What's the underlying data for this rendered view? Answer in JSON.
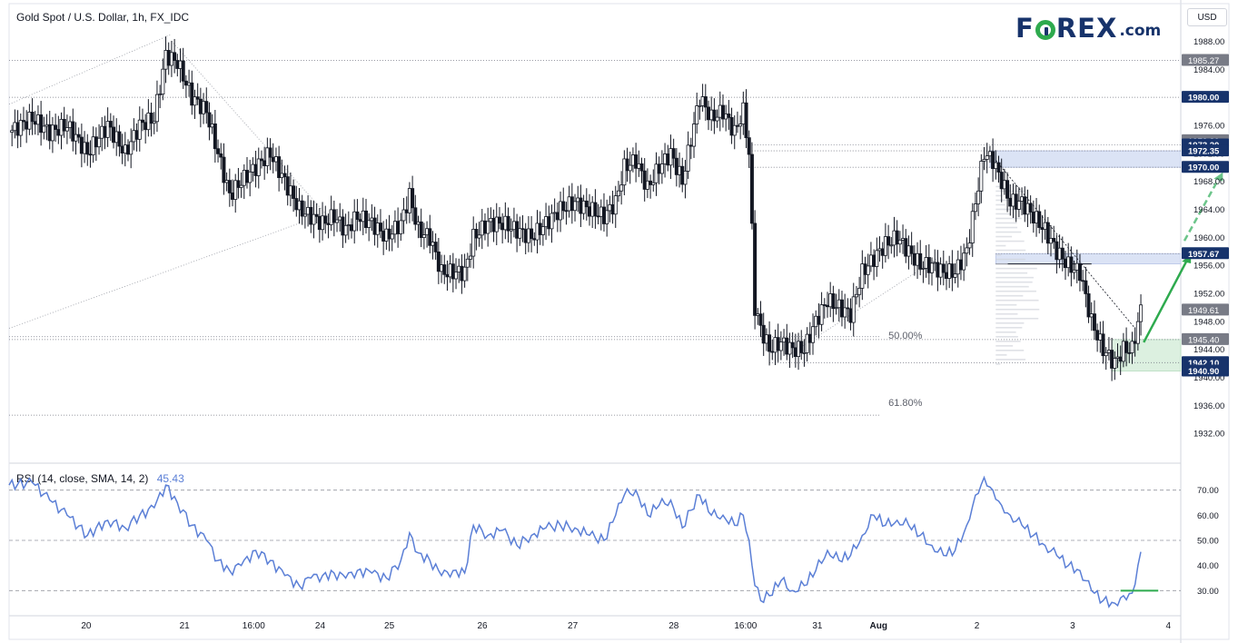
{
  "header": {
    "title": "Gold Spot / U.S. Dollar, 1h, FX_IDC",
    "currency_button": "USD"
  },
  "brand": {
    "name_left": "F",
    "name_right": "REX",
    "suffix": ".com"
  },
  "colors": {
    "up_candle": "#ffffff",
    "down_candle": "#131722",
    "rsi_line": "#5b7fd6",
    "green_arrow": "#2eaa4e",
    "zone_blue": "#dbe3f5",
    "zone_green": "#dcf0e0",
    "label_navy": "#17336b",
    "label_grey": "#787b86"
  },
  "chart_data": [
    {
      "type": "candlestick",
      "title": "Gold Spot / U.S. Dollar, 1h, FX_IDC",
      "x_labels": [
        "20",
        "21",
        "16:00",
        "24",
        "25",
        "26",
        "27",
        "28",
        "16:00",
        "31",
        "Aug",
        "2",
        "3",
        "4"
      ],
      "ylim": [
        1928,
        1990
      ],
      "y_ticks": [
        1932.0,
        1936.0,
        1940.0,
        1944.0,
        1948.0,
        1952.0,
        1956.0,
        1960.0,
        1964.0,
        1968.0,
        1972.0,
        1976.0,
        1980.0,
        1984.0,
        1988.0
      ],
      "price_levels": [
        {
          "value": 1985.27,
          "label": "1985.27",
          "style": "grey"
        },
        {
          "value": 1980.0,
          "label": "1980.00",
          "style": "navy"
        },
        {
          "value": 1973.8,
          "label": "1973.80",
          "style": "grey"
        },
        {
          "value": 1973.2,
          "label": "1973.20",
          "style": "navy"
        },
        {
          "value": 1972.35,
          "label": "1972.35",
          "style": "navy"
        },
        {
          "value": 1970.0,
          "label": "1970.00",
          "style": "navy"
        },
        {
          "value": 1957.67,
          "label": "1957.67",
          "style": "navy"
        },
        {
          "value": 1949.61,
          "label": "1949.61",
          "style": "grey"
        },
        {
          "value": 1945.4,
          "label": "1945.40",
          "style": "grey"
        },
        {
          "value": 1942.1,
          "label": "1942.10",
          "style": "navy"
        },
        {
          "value": 1940.9,
          "label": "1940.90",
          "style": "navy"
        }
      ],
      "fib_levels": [
        {
          "label": "50.00%",
          "value": 1945.8
        },
        {
          "label": "61.80%",
          "value": 1934.6
        }
      ],
      "zones": [
        {
          "name": "resistance",
          "from": 1970.0,
          "to": 1972.35
        },
        {
          "name": "resistance-2",
          "from": 1956.2,
          "to": 1957.67
        },
        {
          "name": "support",
          "from": 1940.9,
          "to": 1945.4
        }
      ],
      "close_path": [
        {
          "x": 0,
          "y": 1975
        },
        {
          "x": 8,
          "y": 1977
        },
        {
          "x": 14,
          "y": 1975
        },
        {
          "x": 20,
          "y": 1976
        },
        {
          "x": 27,
          "y": 1972
        },
        {
          "x": 34,
          "y": 1976
        },
        {
          "x": 40,
          "y": 1972
        },
        {
          "x": 45,
          "y": 1976
        },
        {
          "x": 50,
          "y": 1977
        },
        {
          "x": 54,
          "y": 1986
        },
        {
          "x": 58,
          "y": 1985
        },
        {
          "x": 63,
          "y": 1980
        },
        {
          "x": 68,
          "y": 1978
        },
        {
          "x": 72,
          "y": 1972
        },
        {
          "x": 76,
          "y": 1966
        },
        {
          "x": 80,
          "y": 1968
        },
        {
          "x": 85,
          "y": 1970
        },
        {
          "x": 90,
          "y": 1972
        },
        {
          "x": 95,
          "y": 1968
        },
        {
          "x": 100,
          "y": 1964
        },
        {
          "x": 104,
          "y": 1963
        },
        {
          "x": 108,
          "y": 1962
        },
        {
          "x": 112,
          "y": 1963
        },
        {
          "x": 116,
          "y": 1961
        },
        {
          "x": 120,
          "y": 1963
        },
        {
          "x": 125,
          "y": 1962
        },
        {
          "x": 130,
          "y": 1960
        },
        {
          "x": 135,
          "y": 1962
        },
        {
          "x": 138,
          "y": 1966
        },
        {
          "x": 141,
          "y": 1961
        },
        {
          "x": 145,
          "y": 1960
        },
        {
          "x": 149,
          "y": 1955
        },
        {
          "x": 153,
          "y": 1955
        },
        {
          "x": 157,
          "y": 1955
        },
        {
          "x": 160,
          "y": 1960
        },
        {
          "x": 165,
          "y": 1962
        },
        {
          "x": 170,
          "y": 1962
        },
        {
          "x": 175,
          "y": 1961
        },
        {
          "x": 180,
          "y": 1960
        },
        {
          "x": 185,
          "y": 1962
        },
        {
          "x": 190,
          "y": 1964
        },
        {
          "x": 195,
          "y": 1965
        },
        {
          "x": 200,
          "y": 1964
        },
        {
          "x": 205,
          "y": 1963
        },
        {
          "x": 209,
          "y": 1965
        },
        {
          "x": 212,
          "y": 1970
        },
        {
          "x": 216,
          "y": 1971
        },
        {
          "x": 220,
          "y": 1967
        },
        {
          "x": 224,
          "y": 1970
        },
        {
          "x": 228,
          "y": 1972
        },
        {
          "x": 232,
          "y": 1968
        },
        {
          "x": 235,
          "y": 1974
        },
        {
          "x": 238,
          "y": 1980
        },
        {
          "x": 242,
          "y": 1977
        },
        {
          "x": 246,
          "y": 1978
        },
        {
          "x": 250,
          "y": 1975
        },
        {
          "x": 253,
          "y": 1978
        },
        {
          "x": 255,
          "y": 1972
        },
        {
          "x": 257,
          "y": 1950
        },
        {
          "x": 259,
          "y": 1947
        },
        {
          "x": 262,
          "y": 1944
        },
        {
          "x": 266,
          "y": 1945
        },
        {
          "x": 270,
          "y": 1944
        },
        {
          "x": 274,
          "y": 1944
        },
        {
          "x": 278,
          "y": 1948
        },
        {
          "x": 282,
          "y": 1951
        },
        {
          "x": 286,
          "y": 1950
        },
        {
          "x": 290,
          "y": 1949
        },
        {
          "x": 294,
          "y": 1955
        },
        {
          "x": 298,
          "y": 1957
        },
        {
          "x": 302,
          "y": 1959
        },
        {
          "x": 306,
          "y": 1960
        },
        {
          "x": 310,
          "y": 1958
        },
        {
          "x": 314,
          "y": 1956
        },
        {
          "x": 318,
          "y": 1956
        },
        {
          "x": 322,
          "y": 1955
        },
        {
          "x": 326,
          "y": 1955
        },
        {
          "x": 330,
          "y": 1958
        },
        {
          "x": 333,
          "y": 1965
        },
        {
          "x": 336,
          "y": 1972
        },
        {
          "x": 339,
          "y": 1971
        },
        {
          "x": 342,
          "y": 1968
        },
        {
          "x": 345,
          "y": 1965
        },
        {
          "x": 349,
          "y": 1965
        },
        {
          "x": 353,
          "y": 1963
        },
        {
          "x": 357,
          "y": 1961
        },
        {
          "x": 361,
          "y": 1958
        },
        {
          "x": 365,
          "y": 1956
        },
        {
          "x": 369,
          "y": 1955
        },
        {
          "x": 373,
          "y": 1948
        },
        {
          "x": 377,
          "y": 1944
        },
        {
          "x": 381,
          "y": 1942
        },
        {
          "x": 384,
          "y": 1944
        },
        {
          "x": 387,
          "y": 1944
        },
        {
          "x": 390,
          "y": 1949.61
        }
      ],
      "rsi": {
        "title": "RSI (14, close, SMA, 14, 2)",
        "value_label": "45.43",
        "ylim": [
          20,
          80
        ],
        "y_ticks": [
          30.0,
          40.0,
          50.0,
          60.0,
          70.0
        ],
        "levels": [
          30,
          50,
          70
        ],
        "values": [
          {
            "x": 0,
            "y": 72
          },
          {
            "x": 8,
            "y": 73
          },
          {
            "x": 14,
            "y": 66
          },
          {
            "x": 20,
            "y": 60
          },
          {
            "x": 27,
            "y": 52
          },
          {
            "x": 34,
            "y": 58
          },
          {
            "x": 40,
            "y": 55
          },
          {
            "x": 45,
            "y": 60
          },
          {
            "x": 50,
            "y": 63
          },
          {
            "x": 54,
            "y": 72
          },
          {
            "x": 58,
            "y": 65
          },
          {
            "x": 63,
            "y": 56
          },
          {
            "x": 68,
            "y": 50
          },
          {
            "x": 72,
            "y": 42
          },
          {
            "x": 76,
            "y": 38
          },
          {
            "x": 80,
            "y": 40
          },
          {
            "x": 85,
            "y": 46
          },
          {
            "x": 90,
            "y": 42
          },
          {
            "x": 95,
            "y": 36
          },
          {
            "x": 100,
            "y": 32
          },
          {
            "x": 104,
            "y": 35
          },
          {
            "x": 108,
            "y": 36
          },
          {
            "x": 112,
            "y": 37
          },
          {
            "x": 116,
            "y": 35
          },
          {
            "x": 120,
            "y": 38
          },
          {
            "x": 125,
            "y": 37
          },
          {
            "x": 130,
            "y": 35
          },
          {
            "x": 135,
            "y": 42
          },
          {
            "x": 138,
            "y": 53
          },
          {
            "x": 141,
            "y": 45
          },
          {
            "x": 145,
            "y": 42
          },
          {
            "x": 149,
            "y": 36
          },
          {
            "x": 153,
            "y": 38
          },
          {
            "x": 157,
            "y": 37
          },
          {
            "x": 160,
            "y": 56
          },
          {
            "x": 165,
            "y": 52
          },
          {
            "x": 170,
            "y": 54
          },
          {
            "x": 175,
            "y": 48
          },
          {
            "x": 180,
            "y": 52
          },
          {
            "x": 185,
            "y": 55
          },
          {
            "x": 190,
            "y": 56
          },
          {
            "x": 195,
            "y": 55
          },
          {
            "x": 200,
            "y": 52
          },
          {
            "x": 205,
            "y": 50
          },
          {
            "x": 209,
            "y": 60
          },
          {
            "x": 212,
            "y": 68
          },
          {
            "x": 216,
            "y": 70
          },
          {
            "x": 220,
            "y": 60
          },
          {
            "x": 224,
            "y": 64
          },
          {
            "x": 228,
            "y": 66
          },
          {
            "x": 232,
            "y": 55
          },
          {
            "x": 235,
            "y": 62
          },
          {
            "x": 238,
            "y": 68
          },
          {
            "x": 242,
            "y": 60
          },
          {
            "x": 246,
            "y": 60
          },
          {
            "x": 250,
            "y": 56
          },
          {
            "x": 253,
            "y": 60
          },
          {
            "x": 255,
            "y": 50
          },
          {
            "x": 257,
            "y": 32
          },
          {
            "x": 259,
            "y": 26
          },
          {
            "x": 262,
            "y": 28
          },
          {
            "x": 266,
            "y": 34
          },
          {
            "x": 270,
            "y": 30
          },
          {
            "x": 274,
            "y": 32
          },
          {
            "x": 278,
            "y": 38
          },
          {
            "x": 282,
            "y": 46
          },
          {
            "x": 286,
            "y": 42
          },
          {
            "x": 290,
            "y": 44
          },
          {
            "x": 294,
            "y": 52
          },
          {
            "x": 298,
            "y": 60
          },
          {
            "x": 302,
            "y": 56
          },
          {
            "x": 306,
            "y": 58
          },
          {
            "x": 310,
            "y": 56
          },
          {
            "x": 314,
            "y": 52
          },
          {
            "x": 318,
            "y": 48
          },
          {
            "x": 322,
            "y": 44
          },
          {
            "x": 326,
            "y": 46
          },
          {
            "x": 330,
            "y": 56
          },
          {
            "x": 333,
            "y": 68
          },
          {
            "x": 336,
            "y": 75
          },
          {
            "x": 339,
            "y": 70
          },
          {
            "x": 342,
            "y": 64
          },
          {
            "x": 345,
            "y": 60
          },
          {
            "x": 349,
            "y": 56
          },
          {
            "x": 353,
            "y": 52
          },
          {
            "x": 357,
            "y": 48
          },
          {
            "x": 361,
            "y": 44
          },
          {
            "x": 365,
            "y": 40
          },
          {
            "x": 369,
            "y": 38
          },
          {
            "x": 373,
            "y": 30
          },
          {
            "x": 377,
            "y": 26
          },
          {
            "x": 381,
            "y": 25
          },
          {
            "x": 384,
            "y": 28
          },
          {
            "x": 387,
            "y": 29
          },
          {
            "x": 390,
            "y": 45.43
          }
        ]
      }
    }
  ]
}
